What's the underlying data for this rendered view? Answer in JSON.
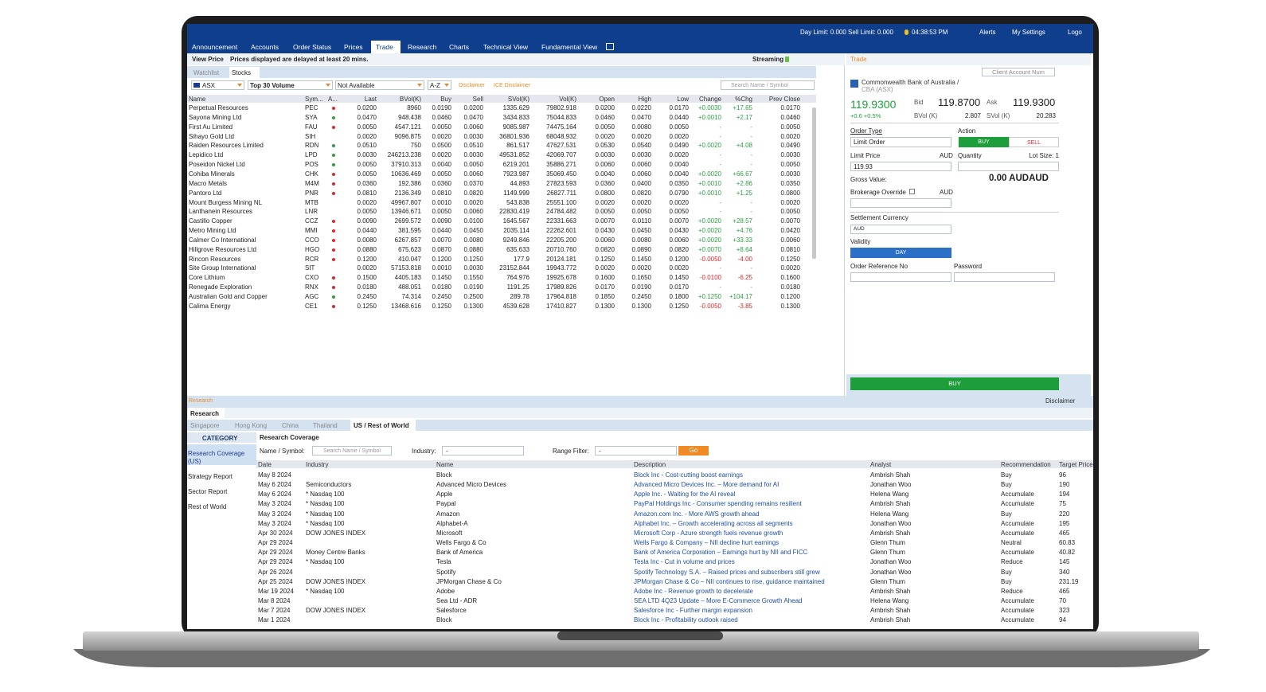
{
  "topbar": {
    "limits": "Day Limit: 0.000 Sell Limit: 0.000",
    "time": "04:38:53 PM",
    "alerts": "Alerts",
    "settings": "My Settings",
    "logout": "Logo"
  },
  "nav": [
    "Announcement",
    "Accounts",
    "Order Status",
    "Prices",
    "Trade",
    "Research",
    "Charts",
    "Technical View",
    "Fundamental View"
  ],
  "stocks": {
    "view_price": "View Price",
    "delay_note": "Prices displayed are delayed at least 20 mins.",
    "streaming": "Streaming",
    "tabs": [
      "Watchlist",
      "Stocks"
    ],
    "filters": [
      "ASX",
      "Top 30 Volume",
      "Not Available",
      "A-Z"
    ],
    "links": [
      "Disclaimer",
      "ICE Disclaimer"
    ],
    "search_placeholder": "Search Name / Symbol",
    "columns": [
      "Name",
      "Sym...",
      "A...",
      "Last",
      "BVol(K)",
      "Buy",
      "Sell",
      "SVol(K)",
      "Vol(K)",
      "Open",
      "High",
      "Low",
      "Change",
      "%Chg",
      "Prev Close"
    ],
    "rows": [
      {
        "dot": "#e0262a",
        "cells": [
          "Perpetual Resources",
          "PEC",
          "0.0200",
          "8960",
          "0.0190",
          "0.0200",
          "1335.629",
          "79802.918",
          "0.0200",
          "0.0220",
          "0.0170",
          "+0.0030",
          "+17.65",
          "0.0170"
        ]
      },
      {
        "dot": "#2ea043",
        "cells": [
          "Sayona Mining Ltd",
          "SYA",
          "0.0470",
          "948.438",
          "0.0460",
          "0.0470",
          "3434.833",
          "75044.833",
          "0.0460",
          "0.0470",
          "0.0440",
          "+0.0010",
          "+2.17",
          "0.0460"
        ]
      },
      {
        "dot": "#e0262a",
        "cells": [
          "First Au Limited",
          "FAU",
          "0.0050",
          "4547.121",
          "0.0050",
          "0.0060",
          "9085.987",
          "74475.164",
          "0.0050",
          "0.0080",
          "0.0050",
          "-",
          "-",
          "0.0050"
        ]
      },
      {
        "dot": null,
        "cells": [
          "Sihayo Gold Ltd",
          "SIH",
          "0.0020",
          "9096.875",
          "0.0020",
          "0.0030",
          "36801.936",
          "68048.932",
          "0.0020",
          "0.0020",
          "0.0020",
          "-",
          "-",
          "0.0020"
        ]
      },
      {
        "dot": "#2ea043",
        "cells": [
          "Raiden Resources Limited",
          "RDN",
          "0.0510",
          "750",
          "0.0500",
          "0.0510",
          "861.517",
          "47627.531",
          "0.0530",
          "0.0540",
          "0.0490",
          "+0.0020",
          "+4.08",
          "0.0490"
        ]
      },
      {
        "dot": "#2ea043",
        "cells": [
          "Lepidico Ltd",
          "LPD",
          "0.0030",
          "246213.238",
          "0.0020",
          "0.0030",
          "49531.852",
          "42069.707",
          "0.0030",
          "0.0030",
          "0.0020",
          "-",
          "-",
          "0.0030"
        ]
      },
      {
        "dot": "#2ea043",
        "cells": [
          "Poseidon Nickel Ltd",
          "POS",
          "0.0050",
          "37910.313",
          "0.0040",
          "0.0050",
          "6219.201",
          "35886.271",
          "0.0060",
          "0.0060",
          "0.0040",
          "-",
          "-",
          "0.0050"
        ]
      },
      {
        "dot": "#e0262a",
        "cells": [
          "Cohiba Minerals",
          "CHK",
          "0.0050",
          "10636.469",
          "0.0050",
          "0.0060",
          "7923.987",
          "35069.450",
          "0.0040",
          "0.0060",
          "0.0040",
          "+0.0020",
          "+66.67",
          "0.0030"
        ]
      },
      {
        "dot": "#e0262a",
        "cells": [
          "Macro Metals",
          "M4M",
          "0.0360",
          "192.386",
          "0.0360",
          "0.0370",
          "44.893",
          "27823.593",
          "0.0360",
          "0.0400",
          "0.0350",
          "+0.0010",
          "+2.86",
          "0.0350"
        ]
      },
      {
        "dot": "#e0262a",
        "cells": [
          "Pantoro Ltd",
          "PNR",
          "0.0810",
          "2136.349",
          "0.0810",
          "0.0820",
          "1149.999",
          "26827.711",
          "0.0800",
          "0.0820",
          "0.0790",
          "+0.0010",
          "+1.25",
          "0.0800"
        ]
      },
      {
        "dot": null,
        "cells": [
          "Mount Burgess Mining NL",
          "MTB",
          "0.0020",
          "49967.807",
          "0.0010",
          "0.0020",
          "543.838",
          "25551.100",
          "0.0020",
          "0.0020",
          "0.0020",
          "-",
          "-",
          "0.0020"
        ]
      },
      {
        "dot": null,
        "cells": [
          "Lanthanein Resources",
          "LNR",
          "0.0050",
          "13946.671",
          "0.0050",
          "0.0060",
          "22830.419",
          "24784.482",
          "0.0050",
          "0.0050",
          "0.0050",
          "-",
          "-",
          "0.0050"
        ]
      },
      {
        "dot": "#e0262a",
        "cells": [
          "Castillo Copper",
          "CCZ",
          "0.0090",
          "2699.572",
          "0.0090",
          "0.0100",
          "1645.567",
          "22331.663",
          "0.0070",
          "0.0110",
          "0.0070",
          "+0.0020",
          "+28.57",
          "0.0070"
        ]
      },
      {
        "dot": "#e0262a",
        "cells": [
          "Metro Mining Ltd",
          "MMI",
          "0.0440",
          "381.595",
          "0.0440",
          "0.0450",
          "2035.114",
          "22262.601",
          "0.0430",
          "0.0450",
          "0.0430",
          "+0.0020",
          "+4.76",
          "0.0420"
        ]
      },
      {
        "dot": "#e0262a",
        "cells": [
          "Calmer Co International",
          "CCO",
          "0.0080",
          "6267.857",
          "0.0070",
          "0.0080",
          "9249.846",
          "22205.200",
          "0.0060",
          "0.0080",
          "0.0060",
          "+0.0020",
          "+33.33",
          "0.0060"
        ]
      },
      {
        "dot": "#e0262a",
        "cells": [
          "Hillgrove Resources Ltd",
          "HGO",
          "0.0880",
          "675.623",
          "0.0870",
          "0.0880",
          "635.633",
          "20710.760",
          "0.0820",
          "0.0890",
          "0.0820",
          "+0.0070",
          "+8.64",
          "0.0810"
        ]
      },
      {
        "dot": "#e0262a",
        "cells": [
          "Rincon Resources",
          "RCR",
          "0.1200",
          "410.047",
          "0.1200",
          "0.1250",
          "177.9",
          "20124.181",
          "0.1250",
          "0.1450",
          "0.1200",
          "-0.0050",
          "-4.00",
          "0.1250"
        ]
      },
      {
        "dot": null,
        "cells": [
          "Site Group International",
          "SIT",
          "0.0020",
          "57153.818",
          "0.0010",
          "0.0030",
          "23152.844",
          "19943.772",
          "0.0020",
          "0.0020",
          "0.0020",
          "-",
          "-",
          "0.0020"
        ]
      },
      {
        "dot": "#e0262a",
        "cells": [
          "Core Lithium",
          "CXO",
          "0.1500",
          "4405.183",
          "0.1450",
          "0.1550",
          "764.976",
          "19925.678",
          "0.1600",
          "0.1650",
          "0.1450",
          "-0.0100",
          "-6.25",
          "0.1600"
        ]
      },
      {
        "dot": "#e0262a",
        "cells": [
          "Renegade Exploration",
          "RNX",
          "0.0180",
          "488.051",
          "0.0180",
          "0.0190",
          "1191.25",
          "17989.826",
          "0.0170",
          "0.0190",
          "0.0170",
          "-",
          "-",
          "0.0180"
        ]
      },
      {
        "dot": "#2ea043",
        "cells": [
          "Australian Gold and Copper",
          "AGC",
          "0.2450",
          "74.314",
          "0.2450",
          "0.2500",
          "289.78",
          "17964.818",
          "0.1850",
          "0.2450",
          "0.1800",
          "+0.1250",
          "+104.17",
          "0.1200"
        ]
      },
      {
        "dot": "#e0262a",
        "cells": [
          "Calima Energy",
          "CE1",
          "0.1250",
          "13468.616",
          "0.1250",
          "0.1300",
          "4539.628",
          "17410.827",
          "0.1300",
          "0.1300",
          "0.1250",
          "-0.0050",
          "-3.85",
          "0.1300"
        ]
      }
    ]
  },
  "trade": {
    "title": "Trade",
    "account_placeholder": "Client Account Num",
    "stock_name": [
      "Commonwealth Bank of Australia /",
      "CBA (ASX)"
    ],
    "last": "119.9300",
    "change": "+0.6 +0.5%",
    "bid_label": "Bid",
    "bid": "119.8700",
    "ask_label": "Ask",
    "ask": "119.9300",
    "bvol_label": "BVol (K)",
    "bvol": "2.807",
    "svol_label": "SVol (K)",
    "svol": "20.283",
    "order_type_label": "Order Type",
    "order_type": "Limit Order",
    "action_label": "Action",
    "buy": "BUY",
    "sell": "SELL",
    "limit_price_label": "Limit Price",
    "currency": "AUD",
    "quantity_label": "Quantity",
    "lot_size": "Lot Size: 1",
    "limit_price": "119.93",
    "gross_value_label": "Gross Value:",
    "gross_value": "0.00 AUDAUD",
    "brokerage_label": "Brokerage Override",
    "settlement_label": "Settlement Currency",
    "validity_label": "Validity",
    "validity": "DAY",
    "reference_label": "Order Reference No",
    "password_label": "Password",
    "submit": "BUY",
    "disclaimer": "Disclaimer"
  },
  "research": {
    "title": "Research",
    "tab": "Research",
    "countries": [
      "Singapore",
      "Hong Kong",
      "China",
      "Thailand",
      "US / Rest of World"
    ],
    "category_header": "CATEGORY",
    "categories": [
      "Research Coverage (US)",
      "Strategy Report",
      "Sector Report",
      "Rest of World"
    ],
    "section": "Research Coverage",
    "name_label": "Name / Symbol:",
    "search_placeholder": "Search Name / Symbol",
    "industry_label": "Industry:",
    "industry_value": "-",
    "range_label": "Range Filter:",
    "range_value": "-",
    "go": "Go",
    "columns": [
      "Date",
      "Industry",
      "Name",
      "Description",
      "Analyst",
      "Recommendation",
      "Target Price"
    ],
    "rows": [
      [
        "May 8 2024",
        null,
        "Block",
        "Block Inc - Cost-cutting boost earnings",
        "Ambrish Shah",
        "Buy",
        "96"
      ],
      [
        "May 6 2024",
        "Semiconductors",
        "Advanced Micro Devices",
        "Advanced Micro Devices Inc. – More demand for AI",
        "Jonathan Woo",
        "Buy",
        "190"
      ],
      [
        "May 6 2024",
        "* Nasdaq 100",
        "Apple",
        "Apple Inc. - Waiting for the AI reveal",
        "Helena Wang",
        "Accumulate",
        "194"
      ],
      [
        "May 3 2024",
        "* Nasdaq 100",
        "Paypal",
        "PayPal Holdings Inc - Consumer spending remains resilient",
        "Ambrish Shah",
        "Accumulate",
        "75"
      ],
      [
        "May 3 2024",
        "* Nasdaq 100",
        "Amazon",
        "Amazon.com Inc. - More AWS growth ahead",
        "Helena Wang",
        "Buy",
        "220"
      ],
      [
        "May 3 2024",
        "* Nasdaq 100",
        "Alphabet-A",
        "Alphabet Inc. – Growth accelerating across all segments",
        "Jonathan Woo",
        "Accumulate",
        "195"
      ],
      [
        "Apr 30 2024",
        "DOW JONES INDEX",
        "Microsoft",
        "Microsoft Corp - Azure strength fuels revenue growth",
        "Ambrish Shah",
        "Accumulate",
        "465"
      ],
      [
        "Apr 29 2024",
        null,
        "Wells Fargo & Co",
        "Wells Fargo & Company – NII decline hurt earnings",
        "Glenn Thum",
        "Neutral",
        "60.83"
      ],
      [
        "Apr 29 2024",
        "Money Centre Banks",
        "Bank of America",
        "Bank of America Corporation – Earnings hurt by NII and FICC",
        "Glenn Thum",
        "Accumulate",
        "40.82"
      ],
      [
        "Apr 29 2024",
        "* Nasdaq 100",
        "Tesla",
        "Tesla Inc - Cut in volume and prices",
        "Jonathan Woo",
        "Reduce",
        "145"
      ],
      [
        "Apr 26 2024",
        null,
        "Spotify",
        "Spotify Technology S.A. – Raised prices and subscribers still grew",
        "Jonathan Woo",
        "Buy",
        "340"
      ],
      [
        "Apr 25 2024",
        "DOW JONES INDEX",
        "JPMorgan Chase & Co",
        "JPMorgan Chase & Co – NII continues to rise, guidance maintained",
        "Glenn Thum",
        "Buy",
        "231.19"
      ],
      [
        "Mar 19 2024",
        "* Nasdaq 100",
        "Adobe",
        "Adobe Inc - Revenue growth to decelerate",
        "Ambrish Shah",
        "Reduce",
        "465"
      ],
      [
        "Mar 8 2024",
        null,
        "Sea Ltd - ADR",
        "SEA LTD 4Q23 Update – More E-Commerce Growth Ahead",
        "Helena Wang",
        "Accumulate",
        "70"
      ],
      [
        "Mar 7 2024",
        "DOW JONES INDEX",
        "Salesforce",
        "Salesforce Inc - Further margin expansion",
        "Ambrish Shah",
        "Accumulate",
        "323"
      ],
      [
        "Mar 1 2024",
        null,
        "Block",
        "Block Inc - Profitability outlook raised",
        "Ambrish Shah",
        "Accumulate",
        "94"
      ]
    ]
  }
}
